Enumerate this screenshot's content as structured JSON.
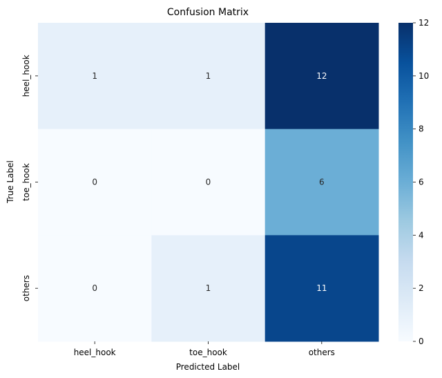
{
  "chart_data": {
    "type": "heatmap",
    "title": "Confusion Matrix",
    "xlabel": "Predicted Label",
    "ylabel": "True Label",
    "x_categories": [
      "heel_hook",
      "toe_hook",
      "others"
    ],
    "y_categories": [
      "heel_hook",
      "toe_hook",
      "others"
    ],
    "values": [
      [
        1,
        1,
        12
      ],
      [
        0,
        0,
        6
      ],
      [
        0,
        1,
        11
      ]
    ],
    "colorbar": {
      "min": 0,
      "max": 12,
      "ticks": [
        0,
        2,
        4,
        6,
        8,
        10,
        12
      ]
    },
    "colormap": "Blues",
    "colors": {
      "low": "#f7fbff",
      "high": "#08306b",
      "text_dark": "#262626",
      "text_light": "#ffffff"
    }
  }
}
